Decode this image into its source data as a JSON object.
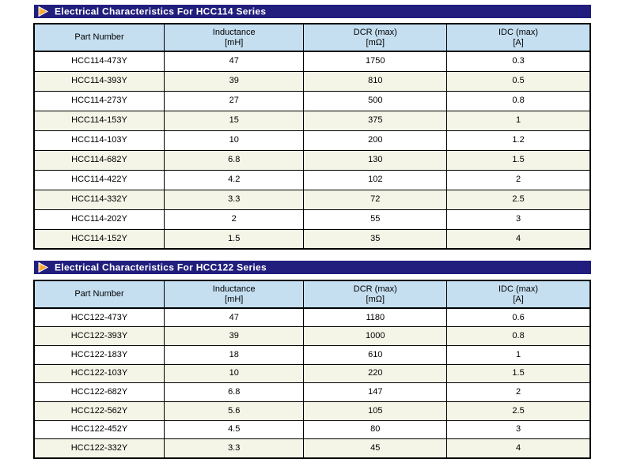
{
  "colors": {
    "title_bar_bg": "#221E7D",
    "title_text": "#FFFFFF",
    "table_header_bg": "#C5DFF1",
    "row_alt_bg": "#F4F4E7",
    "row_bg": "#FFFFFF",
    "border": "#000000",
    "triangle_light": "#FFD24A",
    "triangle_dark": "#EF7A1A"
  },
  "sections": [
    {
      "title": "Electrical Characteristics For HCC114 Series",
      "columns": [
        {
          "label": "Part Number",
          "unit": ""
        },
        {
          "label": "Inductance",
          "unit": "[mH]"
        },
        {
          "label": "DCR (max)",
          "unit": "[mΩ]"
        },
        {
          "label": "IDC (max)",
          "unit": "[A]"
        }
      ],
      "rows": [
        [
          "HCC114-473Y",
          "47",
          "1750",
          "0.3"
        ],
        [
          "HCC114-393Y",
          "39",
          "810",
          "0.5"
        ],
        [
          "HCC114-273Y",
          "27",
          "500",
          "0.8"
        ],
        [
          "HCC114-153Y",
          "15",
          "375",
          "1"
        ],
        [
          "HCC114-103Y",
          "10",
          "200",
          "1.2"
        ],
        [
          "HCC114-682Y",
          "6.8",
          "130",
          "1.5"
        ],
        [
          "HCC114-422Y",
          "4.2",
          "102",
          "2"
        ],
        [
          "HCC114-332Y",
          "3.3",
          "72",
          "2.5"
        ],
        [
          "HCC114-202Y",
          "2",
          "55",
          "3"
        ],
        [
          "HCC114-152Y",
          "1.5",
          "35",
          "4"
        ]
      ]
    },
    {
      "title": "Electrical Characteristics For HCC122 Series",
      "columns": [
        {
          "label": "Part Number",
          "unit": ""
        },
        {
          "label": "Inductance",
          "unit": "[mH]"
        },
        {
          "label": "DCR (max)",
          "unit": "[mΩ]"
        },
        {
          "label": "IDC (max)",
          "unit": "[A]"
        }
      ],
      "rows": [
        [
          "HCC122-473Y",
          "47",
          "1180",
          "0.6"
        ],
        [
          "HCC122-393Y",
          "39",
          "1000",
          "0.8"
        ],
        [
          "HCC122-183Y",
          "18",
          "610",
          "1"
        ],
        [
          "HCC122-103Y",
          "10",
          "220",
          "1.5"
        ],
        [
          "HCC122-682Y",
          "6.8",
          "147",
          "2"
        ],
        [
          "HCC122-562Y",
          "5.6",
          "105",
          "2.5"
        ],
        [
          "HCC122-452Y",
          "4.5",
          "80",
          "3"
        ],
        [
          "HCC122-332Y",
          "3.3",
          "45",
          "4"
        ]
      ]
    }
  ]
}
